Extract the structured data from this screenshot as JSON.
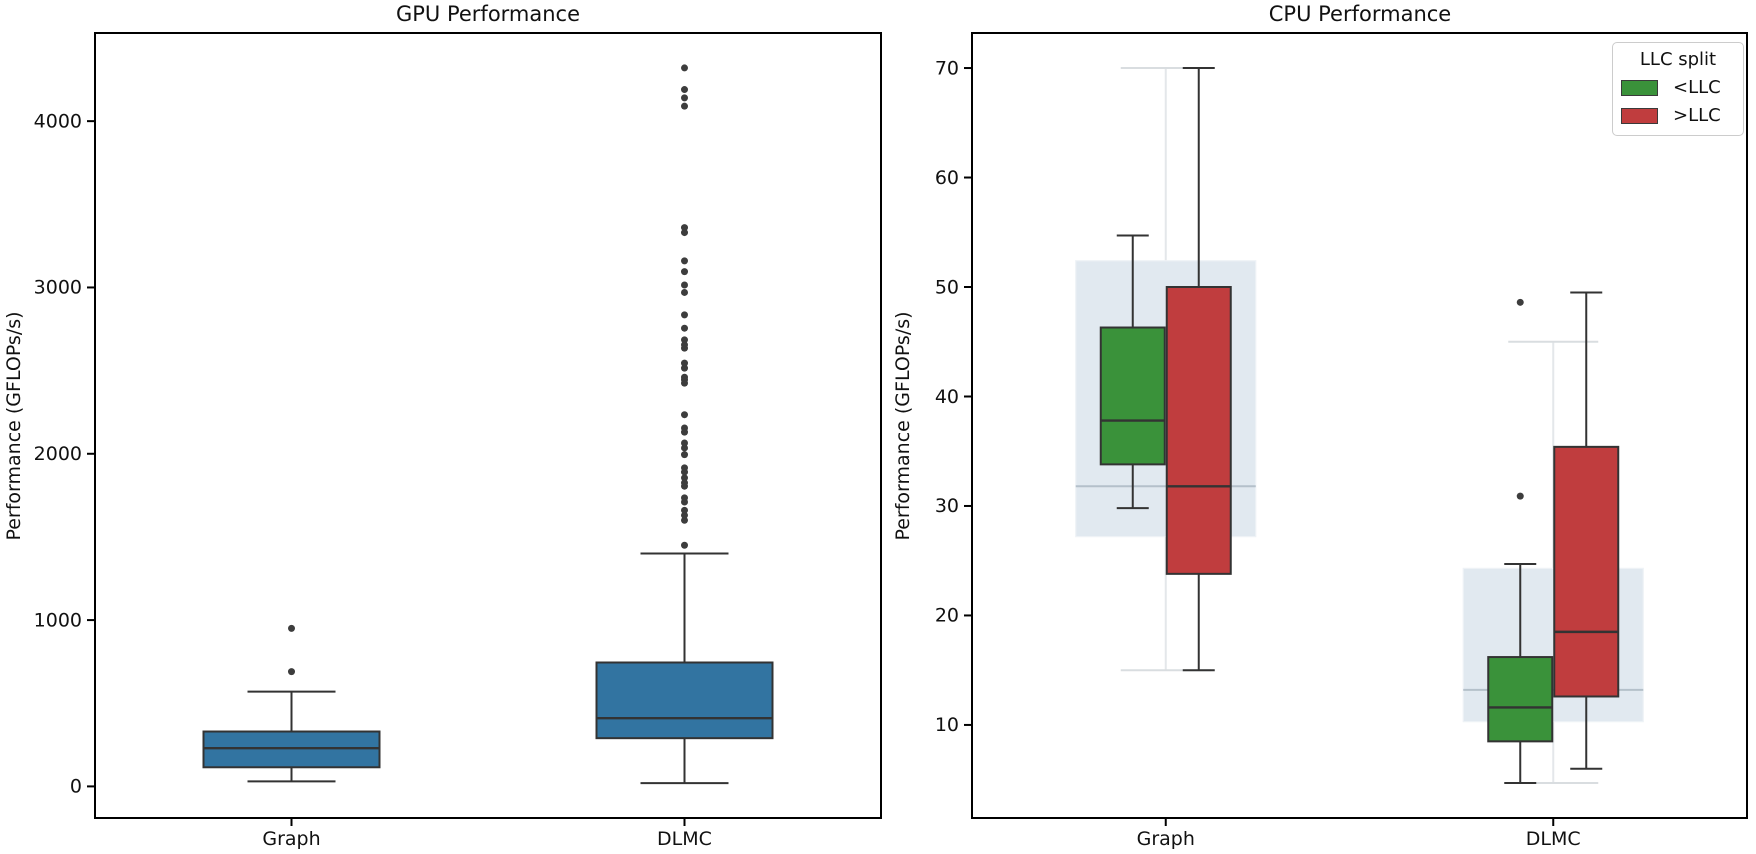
{
  "figure": {
    "background": "#ffffff",
    "text_color": "#111111",
    "axis_color": "#000000",
    "box_edge_color": "#333333",
    "outlier_color": "#3d3d3d"
  },
  "chart_data": [
    {
      "type": "boxplot",
      "title": "GPU Performance",
      "ylabel": "Performance (GFLOPs/s)",
      "xlabel": "",
      "categories": [
        "Graph",
        "DLMC"
      ],
      "yticks": [
        0,
        1000,
        2000,
        3000,
        4000
      ],
      "ylim": [
        -190,
        4530
      ],
      "grid": false,
      "series": [
        {
          "name": "GPU",
          "color": "#3274a1",
          "boxes": [
            {
              "category": "Graph",
              "whisker_low": 30,
              "q1": 115,
              "median": 230,
              "q3": 330,
              "whisker_high": 570,
              "outliers": [
                690,
                950
              ]
            },
            {
              "category": "DLMC",
              "whisker_low": 20,
              "q1": 290,
              "median": 410,
              "q3": 745,
              "whisker_high": 1400,
              "outliers": [
                1450,
                1600,
                1630,
                1660,
                1710,
                1735,
                1805,
                1825,
                1855,
                1890,
                1915,
                1995,
                2035,
                2065,
                2130,
                2155,
                2235,
                2425,
                2445,
                2460,
                2515,
                2545,
                2635,
                2655,
                2685,
                2755,
                2835,
                2970,
                3015,
                3095,
                3160,
                3330,
                3360,
                4090,
                4140,
                4190,
                4320
              ]
            }
          ]
        }
      ]
    },
    {
      "type": "grouped_boxplot",
      "title": "CPU Performance",
      "ylabel": "Performance (GFLOPs/s)",
      "xlabel": "",
      "categories": [
        "Graph",
        "DLMC"
      ],
      "yticks": [
        10,
        20,
        30,
        40,
        50,
        60,
        70
      ],
      "ylim": [
        1.5,
        73.2
      ],
      "grid": false,
      "legend": {
        "title": "LLC split",
        "position": "upper right",
        "entries": [
          {
            "label": "<LLC",
            "color": "#3a923a"
          },
          {
            "label": ">LLC",
            "color": "#c03d3e"
          }
        ]
      },
      "background_series": {
        "name": "combined",
        "fill": "#e1e9f0",
        "median_color": "#b4c0ca",
        "whisker_color": "#e4e7ea",
        "boxes": [
          {
            "category": "Graph",
            "whisker_low": 15.0,
            "q1": 27.2,
            "median": 31.8,
            "q3": 52.4,
            "whisker_high": 70.0,
            "outliers": []
          },
          {
            "category": "DLMC",
            "whisker_low": 4.7,
            "q1": 10.3,
            "median": 13.2,
            "q3": 24.3,
            "whisker_high": 45.0,
            "outliers": []
          }
        ]
      },
      "series": [
        {
          "name": "<LLC",
          "color": "#3a923a",
          "boxes": [
            {
              "category": "Graph",
              "whisker_low": 29.8,
              "q1": 33.8,
              "median": 37.8,
              "q3": 46.3,
              "whisker_high": 54.7,
              "outliers": []
            },
            {
              "category": "DLMC",
              "whisker_low": 4.7,
              "q1": 8.5,
              "median": 11.6,
              "q3": 16.2,
              "whisker_high": 24.7,
              "outliers": [
                30.9,
                48.6
              ]
            }
          ]
        },
        {
          "name": ">LLC",
          "color": "#c03d3e",
          "boxes": [
            {
              "category": "Graph",
              "whisker_low": 15.0,
              "q1": 23.8,
              "median": 31.8,
              "q3": 50.0,
              "whisker_high": 70.0,
              "outliers": []
            },
            {
              "category": "DLMC",
              "whisker_low": 6.0,
              "q1": 12.6,
              "median": 18.5,
              "q3": 35.4,
              "whisker_high": 49.5,
              "outliers": []
            }
          ]
        }
      ]
    }
  ]
}
